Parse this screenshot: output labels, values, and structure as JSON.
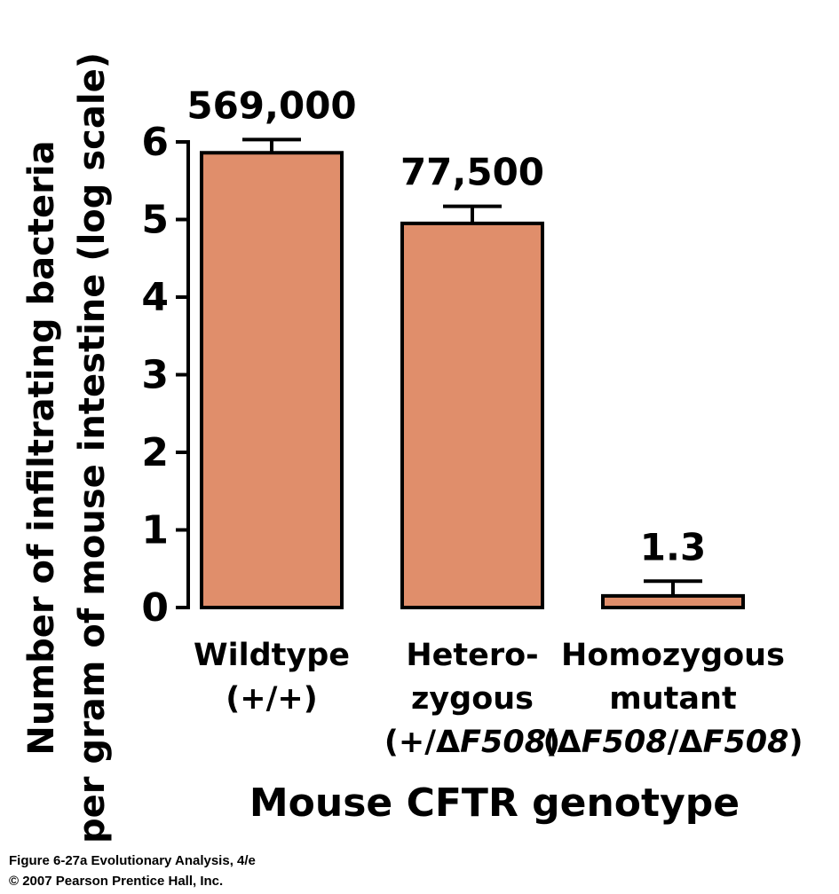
{
  "chart_data": {
    "type": "bar",
    "title": "",
    "xlabel": "Mouse CFTR genotype",
    "ylabel_lines": [
      "Number of infiltrating bacteria",
      "per gram of mouse intestine (log scale)"
    ],
    "ylim": [
      0,
      6
    ],
    "yscale": "log10",
    "yticks": [
      "0",
      "1",
      "2",
      "3",
      "4",
      "5",
      "6"
    ],
    "categories": [
      {
        "lines": [
          "Wildtype",
          "(+/+)"
        ]
      },
      {
        "lines": [
          "Hetero-",
          "zygous",
          "(+/ΔF508)"
        ]
      },
      {
        "lines": [
          "Homozygous",
          "mutant",
          "(ΔF508/ΔF508)"
        ]
      }
    ],
    "values": [
      569000,
      77500,
      1.3
    ],
    "log10_values": [
      5.86,
      4.95,
      0.15
    ],
    "error_upper_log10": [
      6.03,
      5.17,
      0.34
    ],
    "data_labels": [
      "569,000",
      "77,500",
      "1.3"
    ],
    "bar_color": "#e08e6b",
    "bar_stroke": "#000000",
    "grid": false,
    "legend": "none"
  },
  "footer": {
    "line1": "Figure 6-27a  Evolutionary Analysis, 4/e",
    "line2": "© 2007 Pearson Prentice Hall, Inc."
  }
}
